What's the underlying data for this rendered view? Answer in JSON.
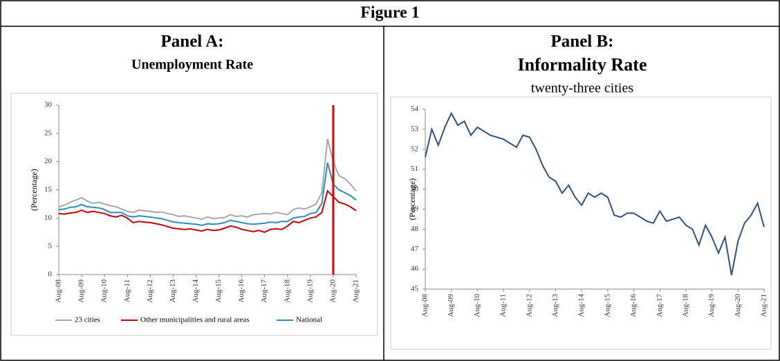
{
  "figure_title": "Figure 1",
  "chart_data": [
    {
      "type": "line",
      "title": "Panel A:",
      "subtitle": "Unemployment Rate",
      "y_label": "(Percentage)",
      "categories": [
        "Aug-08",
        null,
        null,
        null,
        "Aug-09",
        null,
        null,
        null,
        "Aug-10",
        null,
        null,
        null,
        "Aug-11",
        null,
        null,
        null,
        "Aug-12",
        null,
        null,
        null,
        "Aug-13",
        null,
        null,
        null,
        "Aug-14",
        null,
        null,
        null,
        "Aug-15",
        null,
        null,
        null,
        "Aug-16",
        null,
        null,
        null,
        "Aug-17",
        null,
        null,
        null,
        "Aug-18",
        null,
        null,
        null,
        "Aug-19",
        null,
        null,
        null,
        "Aug-20",
        null,
        null,
        null,
        "Aug-21"
      ],
      "series": [
        {
          "name": "23 cities",
          "color": "#a6a6a6",
          "values": [
            12.0,
            12.3,
            12.8,
            13.2,
            13.6,
            13.0,
            12.6,
            12.8,
            12.5,
            12.2,
            12.0,
            11.6,
            11.2,
            11.0,
            11.4,
            11.3,
            11.2,
            11.0,
            11.1,
            10.8,
            10.6,
            10.3,
            10.4,
            10.2,
            10.0,
            9.8,
            10.2,
            9.9,
            10.0,
            10.1,
            10.6,
            10.3,
            10.4,
            10.2,
            10.6,
            10.7,
            10.8,
            10.7,
            11.0,
            10.8,
            10.6,
            11.5,
            11.8,
            11.6,
            12.0,
            12.5,
            14.5,
            24.0,
            20.0,
            17.5,
            17.0,
            16.0,
            14.8
          ]
        },
        {
          "name": "Other municipalities and rural areas",
          "color": "#c00000",
          "values": [
            10.8,
            10.7,
            10.9,
            11.0,
            11.4,
            11.0,
            11.2,
            11.0,
            10.8,
            10.4,
            10.2,
            10.5,
            10.0,
            9.2,
            9.4,
            9.3,
            9.2,
            9.0,
            8.8,
            8.5,
            8.2,
            8.1,
            8.0,
            8.1,
            7.9,
            7.7,
            8.0,
            7.8,
            7.9,
            8.2,
            8.6,
            8.4,
            8.0,
            7.8,
            7.6,
            7.8,
            7.5,
            8.0,
            8.1,
            8.0,
            8.6,
            9.4,
            9.2,
            9.6,
            10.0,
            10.2,
            11.0,
            14.8,
            13.8,
            12.8,
            12.5,
            12.0,
            11.3
          ]
        },
        {
          "name": "National",
          "color": "#2e8bc0",
          "values": [
            11.5,
            11.6,
            11.9,
            12.0,
            12.4,
            12.0,
            11.9,
            11.8,
            11.5,
            11.0,
            11.0,
            11.0,
            10.4,
            10.2,
            10.4,
            10.3,
            10.2,
            10.0,
            9.9,
            9.6,
            9.3,
            9.2,
            9.1,
            9.0,
            8.9,
            8.7,
            9.0,
            8.9,
            9.0,
            9.2,
            9.6,
            9.4,
            9.2,
            9.0,
            8.9,
            9.0,
            9.1,
            9.3,
            9.2,
            9.4,
            9.4,
            10.0,
            10.2,
            10.3,
            10.8,
            11.0,
            12.6,
            19.8,
            16.0,
            15.0,
            14.5,
            14.0,
            13.2
          ]
        }
      ],
      "reference_line": {
        "at": 48,
        "color": "#e00000"
      },
      "ylim": [
        0,
        30
      ],
      "yticks": [
        0,
        5,
        10,
        15,
        20,
        25,
        30
      ],
      "legend": "bottom",
      "grid": false
    },
    {
      "type": "line",
      "title": "Panel B:",
      "subtitle": "Informality Rate",
      "note": "twenty-three cities",
      "y_label": "(Percentage)",
      "categories": [
        "Aug-08",
        null,
        null,
        null,
        "Aug-09",
        null,
        null,
        null,
        "Aug-10",
        null,
        null,
        null,
        "Aug-11",
        null,
        null,
        null,
        "Aug-12",
        null,
        null,
        null,
        "Aug-13",
        null,
        null,
        null,
        "Aug-14",
        null,
        null,
        null,
        "Aug-15",
        null,
        null,
        null,
        "Aug-16",
        null,
        null,
        null,
        "Aug-17",
        null,
        null,
        null,
        "Aug-18",
        null,
        null,
        null,
        "Aug-19",
        null,
        null,
        null,
        "Aug-20",
        null,
        null,
        null,
        "Aug-21"
      ],
      "series": [
        {
          "color": "#2f4f7f",
          "values": [
            51.6,
            53.0,
            52.2,
            53.1,
            53.8,
            53.2,
            53.4,
            52.7,
            53.1,
            52.9,
            52.7,
            52.6,
            52.5,
            52.3,
            52.1,
            52.7,
            52.6,
            52.0,
            51.2,
            50.6,
            50.4,
            49.8,
            50.2,
            49.6,
            49.2,
            49.8,
            49.6,
            49.8,
            49.6,
            48.7,
            48.6,
            48.8,
            48.8,
            48.6,
            48.4,
            48.3,
            48.9,
            48.4,
            48.5,
            48.6,
            48.2,
            48.0,
            47.2,
            48.2,
            47.6,
            46.8,
            47.6,
            45.7,
            47.4,
            48.3,
            48.7,
            49.3,
            48.1
          ]
        }
      ],
      "ylim": [
        45,
        54
      ],
      "yticks": [
        45,
        46,
        47,
        48,
        49,
        50,
        51,
        52,
        53,
        54
      ],
      "grid": false
    }
  ]
}
